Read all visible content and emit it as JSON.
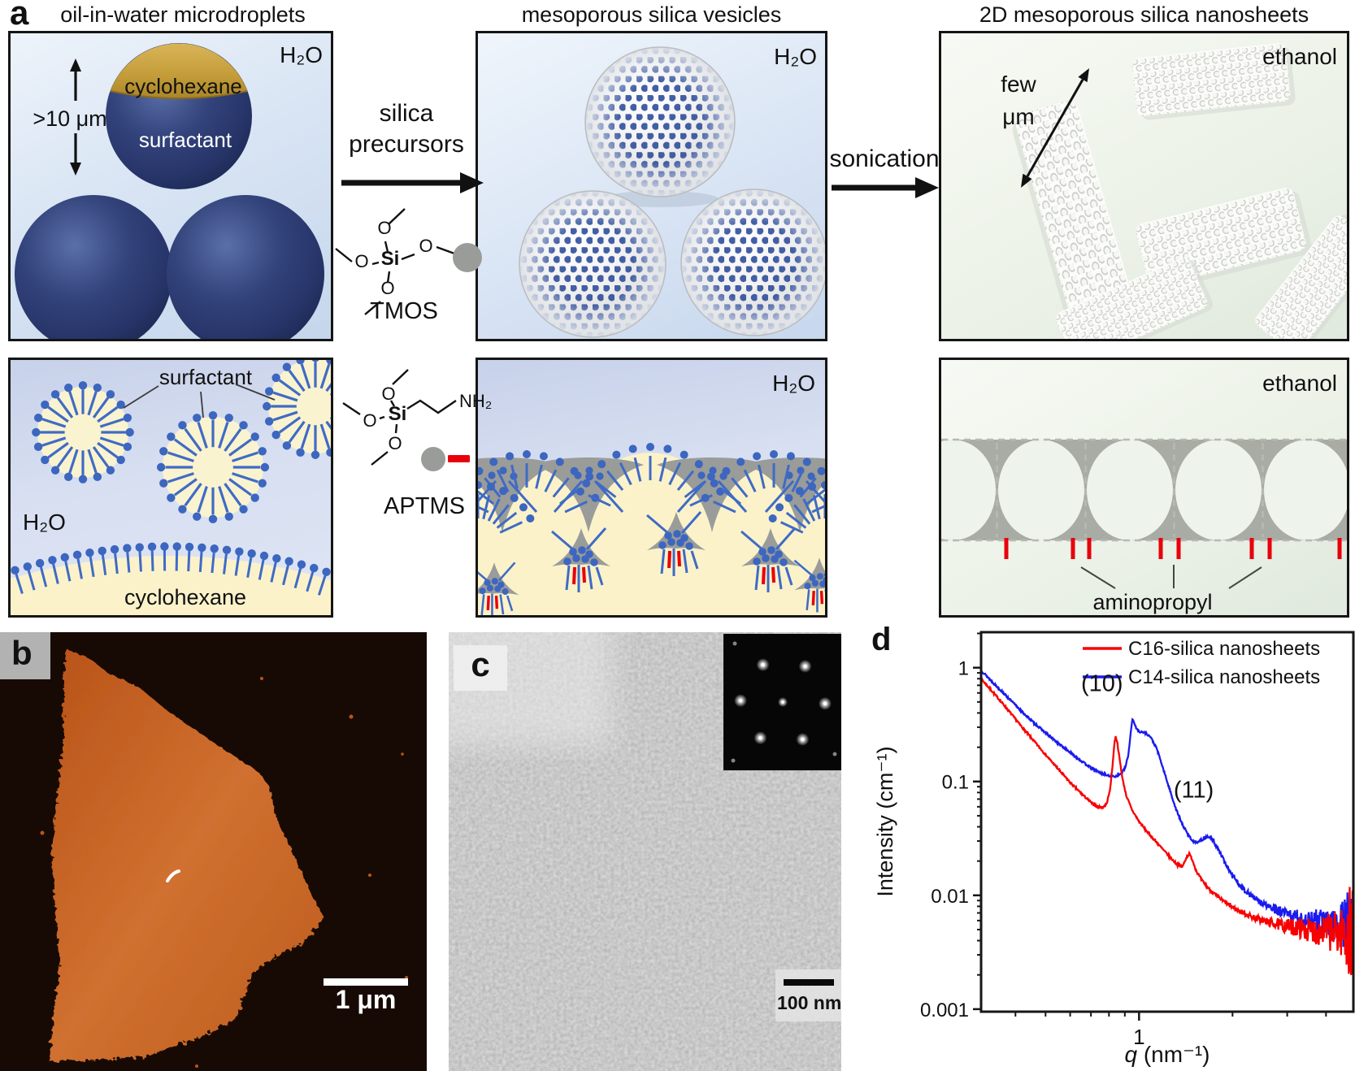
{
  "panel_a": {
    "letter": "a",
    "title_droplets": "oil-in-water microdroplets",
    "title_vesicles": "mesoporous silica vesicles",
    "title_nanosheets": "2D mesoporous silica nanosheets",
    "droplets": {
      "solvent": "H₂O",
      "cap_label": "cyclohexane",
      "body_label": "surfactant",
      "size_label": ">10 μm"
    },
    "vesicles": {
      "solvent": "H₂O"
    },
    "nanosheets": {
      "solvent": "ethanol",
      "size_label_line1": "few",
      "size_label_line2": "μm"
    },
    "micelles": {
      "pointer_label": "surfactant",
      "solvent": "H₂O",
      "oil_label": "cyclohexane"
    },
    "interface": {
      "solvent": "H₂O"
    },
    "sheet_cross_section": {
      "solvent": "ethanol",
      "pointer_label": "aminopropyl"
    },
    "step1": {
      "label_line1": "silica",
      "label_line2": "precursors"
    },
    "step2": {
      "label": "sonication"
    },
    "molecules": {
      "tmos": "TMOS",
      "aptms": "APTMS"
    },
    "atoms": {
      "oxygen": "O",
      "silicon": "Si",
      "amine": "NH₂"
    }
  },
  "panel_b": {
    "letter": "b",
    "scale_bar": "1 μm"
  },
  "panel_c": {
    "letter": "c",
    "scale_bar": "100 nm"
  },
  "panel_d": {
    "letter": "d"
  },
  "icons": {
    "reaction_arrow": "black right arrow",
    "dimension_arrow": "double-headed arrow"
  },
  "colors": {
    "surfactant_blue": "#3f6bc5",
    "silica_gray": "#9a9c99",
    "aminopropyl_red": "#e8000b",
    "oil_cream": "#fbf2ca",
    "droplet_navy": "#2c3b6e"
  },
  "chart_data": {
    "type": "line",
    "xscale": "log",
    "yscale": "log",
    "xlabel_var": "q",
    "xlabel_units": " (nm⁻¹)",
    "ylabel": "Intensity (cm⁻¹)",
    "xlim": [
      0.31,
      4.9
    ],
    "ylim": [
      0.00095,
      2.05
    ],
    "xticks": [
      1
    ],
    "yticks": [
      1,
      0.1,
      0.01,
      0.001
    ],
    "legend_position": "top-right",
    "annotations": [
      {
        "label": "(10)",
        "q": 0.76,
        "intensity": 0.62
      },
      {
        "label": "(11)",
        "q": 1.5,
        "intensity": 0.072
      }
    ],
    "series": [
      {
        "name": "C16-silica nanosheets",
        "color": "#f80000",
        "points": [
          [
            0.31,
            0.8
          ],
          [
            0.34,
            0.6
          ],
          [
            0.38,
            0.42
          ],
          [
            0.42,
            0.3
          ],
          [
            0.46,
            0.225
          ],
          [
            0.5,
            0.172
          ],
          [
            0.55,
            0.128
          ],
          [
            0.6,
            0.098
          ],
          [
            0.65,
            0.079
          ],
          [
            0.7,
            0.0655
          ],
          [
            0.73,
            0.0605
          ],
          [
            0.76,
            0.059
          ],
          [
            0.785,
            0.063
          ],
          [
            0.805,
            0.082
          ],
          [
            0.82,
            0.13
          ],
          [
            0.832,
            0.21
          ],
          [
            0.84,
            0.25
          ],
          [
            0.85,
            0.225
          ],
          [
            0.865,
            0.16
          ],
          [
            0.885,
            0.105
          ],
          [
            0.91,
            0.075
          ],
          [
            0.95,
            0.056
          ],
          [
            1.0,
            0.0445
          ],
          [
            1.05,
            0.0375
          ],
          [
            1.1,
            0.0325
          ],
          [
            1.18,
            0.0262
          ],
          [
            1.26,
            0.0215
          ],
          [
            1.33,
            0.0185
          ],
          [
            1.38,
            0.0178
          ],
          [
            1.42,
            0.0215
          ],
          [
            1.45,
            0.0232
          ],
          [
            1.48,
            0.021
          ],
          [
            1.53,
            0.0163
          ],
          [
            1.6,
            0.0133
          ],
          [
            1.7,
            0.011
          ],
          [
            1.82,
            0.0094
          ],
          [
            1.95,
            0.0082
          ],
          [
            2.1,
            0.0073
          ],
          [
            2.3,
            0.0065
          ],
          [
            2.55,
            0.0059
          ],
          [
            2.85,
            0.0055
          ],
          [
            3.2,
            0.0052
          ],
          [
            3.6,
            0.0049
          ],
          [
            4.0,
            0.0048
          ],
          [
            4.4,
            0.0047
          ],
          [
            4.9,
            0.0046
          ]
        ]
      },
      {
        "name": "C14-silica nanosheets",
        "color": "#1a1aee",
        "points": [
          [
            0.31,
            0.95
          ],
          [
            0.34,
            0.73
          ],
          [
            0.38,
            0.54
          ],
          [
            0.42,
            0.41
          ],
          [
            0.46,
            0.325
          ],
          [
            0.5,
            0.268
          ],
          [
            0.55,
            0.216
          ],
          [
            0.6,
            0.18
          ],
          [
            0.65,
            0.152
          ],
          [
            0.7,
            0.132
          ],
          [
            0.75,
            0.119
          ],
          [
            0.8,
            0.112
          ],
          [
            0.84,
            0.111
          ],
          [
            0.88,
            0.118
          ],
          [
            0.905,
            0.135
          ],
          [
            0.925,
            0.175
          ],
          [
            0.94,
            0.27
          ],
          [
            0.952,
            0.355
          ],
          [
            0.965,
            0.33
          ],
          [
            0.98,
            0.29
          ],
          [
            1.01,
            0.272
          ],
          [
            1.05,
            0.268
          ],
          [
            1.09,
            0.245
          ],
          [
            1.14,
            0.195
          ],
          [
            1.19,
            0.135
          ],
          [
            1.25,
            0.088
          ],
          [
            1.31,
            0.059
          ],
          [
            1.37,
            0.0435
          ],
          [
            1.44,
            0.0337
          ],
          [
            1.5,
            0.0295
          ],
          [
            1.56,
            0.0297
          ],
          [
            1.63,
            0.032
          ],
          [
            1.68,
            0.0328
          ],
          [
            1.74,
            0.0296
          ],
          [
            1.82,
            0.0238
          ],
          [
            1.92,
            0.018
          ],
          [
            2.04,
            0.0138
          ],
          [
            2.18,
            0.0112
          ],
          [
            2.35,
            0.0094
          ],
          [
            2.55,
            0.0082
          ],
          [
            2.8,
            0.0073
          ],
          [
            3.1,
            0.0066
          ],
          [
            3.45,
            0.0061
          ],
          [
            3.8,
            0.0059
          ],
          [
            4.15,
            0.0058
          ],
          [
            4.5,
            0.0057
          ],
          [
            4.75,
            0.0054
          ],
          [
            4.9,
            0.005
          ]
        ]
      }
    ]
  }
}
